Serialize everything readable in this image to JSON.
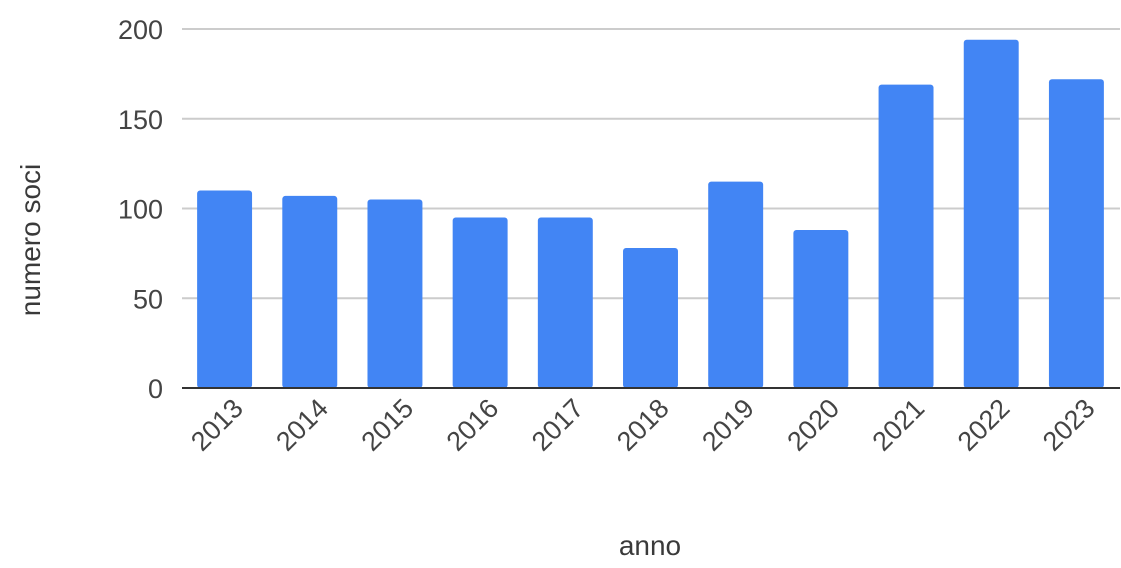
{
  "chart_data": {
    "type": "bar",
    "title": "",
    "xlabel": "anno",
    "ylabel": "numero soci",
    "categories": [
      "2013",
      "2014",
      "2015",
      "2016",
      "2017",
      "2018",
      "2019",
      "2020",
      "2021",
      "2022",
      "2023"
    ],
    "series": [
      {
        "values": [
          110,
          107,
          105,
          95,
          95,
          78,
          115,
          88,
          169,
          194,
          172
        ]
      }
    ],
    "ylim": [
      0,
      200
    ],
    "yticks": [
      "0",
      "50",
      "100",
      "150",
      "200"
    ],
    "grid": true,
    "legend": "none",
    "bar_color": "#4285f4"
  }
}
